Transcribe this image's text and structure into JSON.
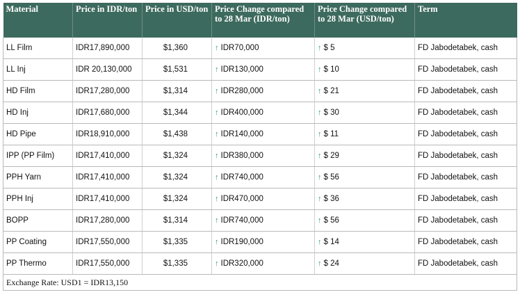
{
  "headers": {
    "material": "Material",
    "price_idr": "Price in IDR/ton",
    "price_usd": "Price in USD/ton",
    "change_idr": "Price Change compared to 28 Mar (IDR/ton)",
    "change_usd": "Price Change compared to 28 Mar (USD/ton)",
    "term": "Term"
  },
  "rows": [
    {
      "material": "LL Film",
      "price_idr": "IDR17,890,000",
      "price_usd": "$1,360",
      "change_idr": "IDR70,000",
      "change_usd": "$ 5",
      "term": "FD Jabodetabek, cash"
    },
    {
      "material": "LL Inj",
      "price_idr": "IDR 20,130,000",
      "price_usd": "$1,531",
      "change_idr": "IDR130,000",
      "change_usd": "$ 10",
      "term": "FD Jabodetabek, cash"
    },
    {
      "material": "HD Film",
      "price_idr": "IDR17,280,000",
      "price_usd": "$1,314",
      "change_idr": "IDR280,000",
      "change_usd": "$ 21",
      "term": "FD Jabodetabek, cash"
    },
    {
      "material": "HD Inj",
      "price_idr": "IDR17,680,000",
      "price_usd": "$1,344",
      "change_idr": "IDR400,000",
      "change_usd": "$ 30",
      "term": "FD Jabodetabek, cash"
    },
    {
      "material": "HD Pipe",
      "price_idr": "IDR18,910,000",
      "price_usd": "$1,438",
      "change_idr": "IDR140,000",
      "change_usd": "$ 11",
      "term": "FD Jabodetabek, cash"
    },
    {
      "material": "IPP (PP Film)",
      "price_idr": "IDR17,410,000",
      "price_usd": "$1,324",
      "change_idr": "IDR380,000",
      "change_usd": "$ 29",
      "term": "FD Jabodetabek, cash"
    },
    {
      "material": "PPH Yarn",
      "price_idr": "IDR17,410,000",
      "price_usd": "$1,324",
      "change_idr": "IDR740,000",
      "change_usd": "$ 56",
      "term": "FD Jabodetabek, cash"
    },
    {
      "material": "PPH Inj",
      "price_idr": "IDR17,410,000",
      "price_usd": "$1,324",
      "change_idr": "IDR470,000",
      "change_usd": "$ 36",
      "term": "FD Jabodetabek, cash"
    },
    {
      "material": "BOPP",
      "price_idr": "IDR17,280,000",
      "price_usd": "$1,314",
      "change_idr": "IDR740,000",
      "change_usd": "$ 56",
      "term": "FD Jabodetabek, cash"
    },
    {
      "material": "PP Coating",
      "price_idr": "IDR17,550,000",
      "price_usd": "$1,335",
      "change_idr": "IDR190,000",
      "change_usd": "$ 14",
      "term": "FD Jabodetabek, cash"
    },
    {
      "material": "PP Thermo",
      "price_idr": "IDR17,550,000",
      "price_usd": "$1,335",
      "change_idr": "IDR320,000",
      "change_usd": "$ 24",
      "term": "FD Jabodetabek, cash"
    }
  ],
  "arrow_icon": "up-arrow-icon",
  "colors": {
    "header_bg": "#3d6a5e",
    "arrow": "#2e9e62"
  },
  "footer": "Exchange Rate: USD1 = IDR13,150"
}
